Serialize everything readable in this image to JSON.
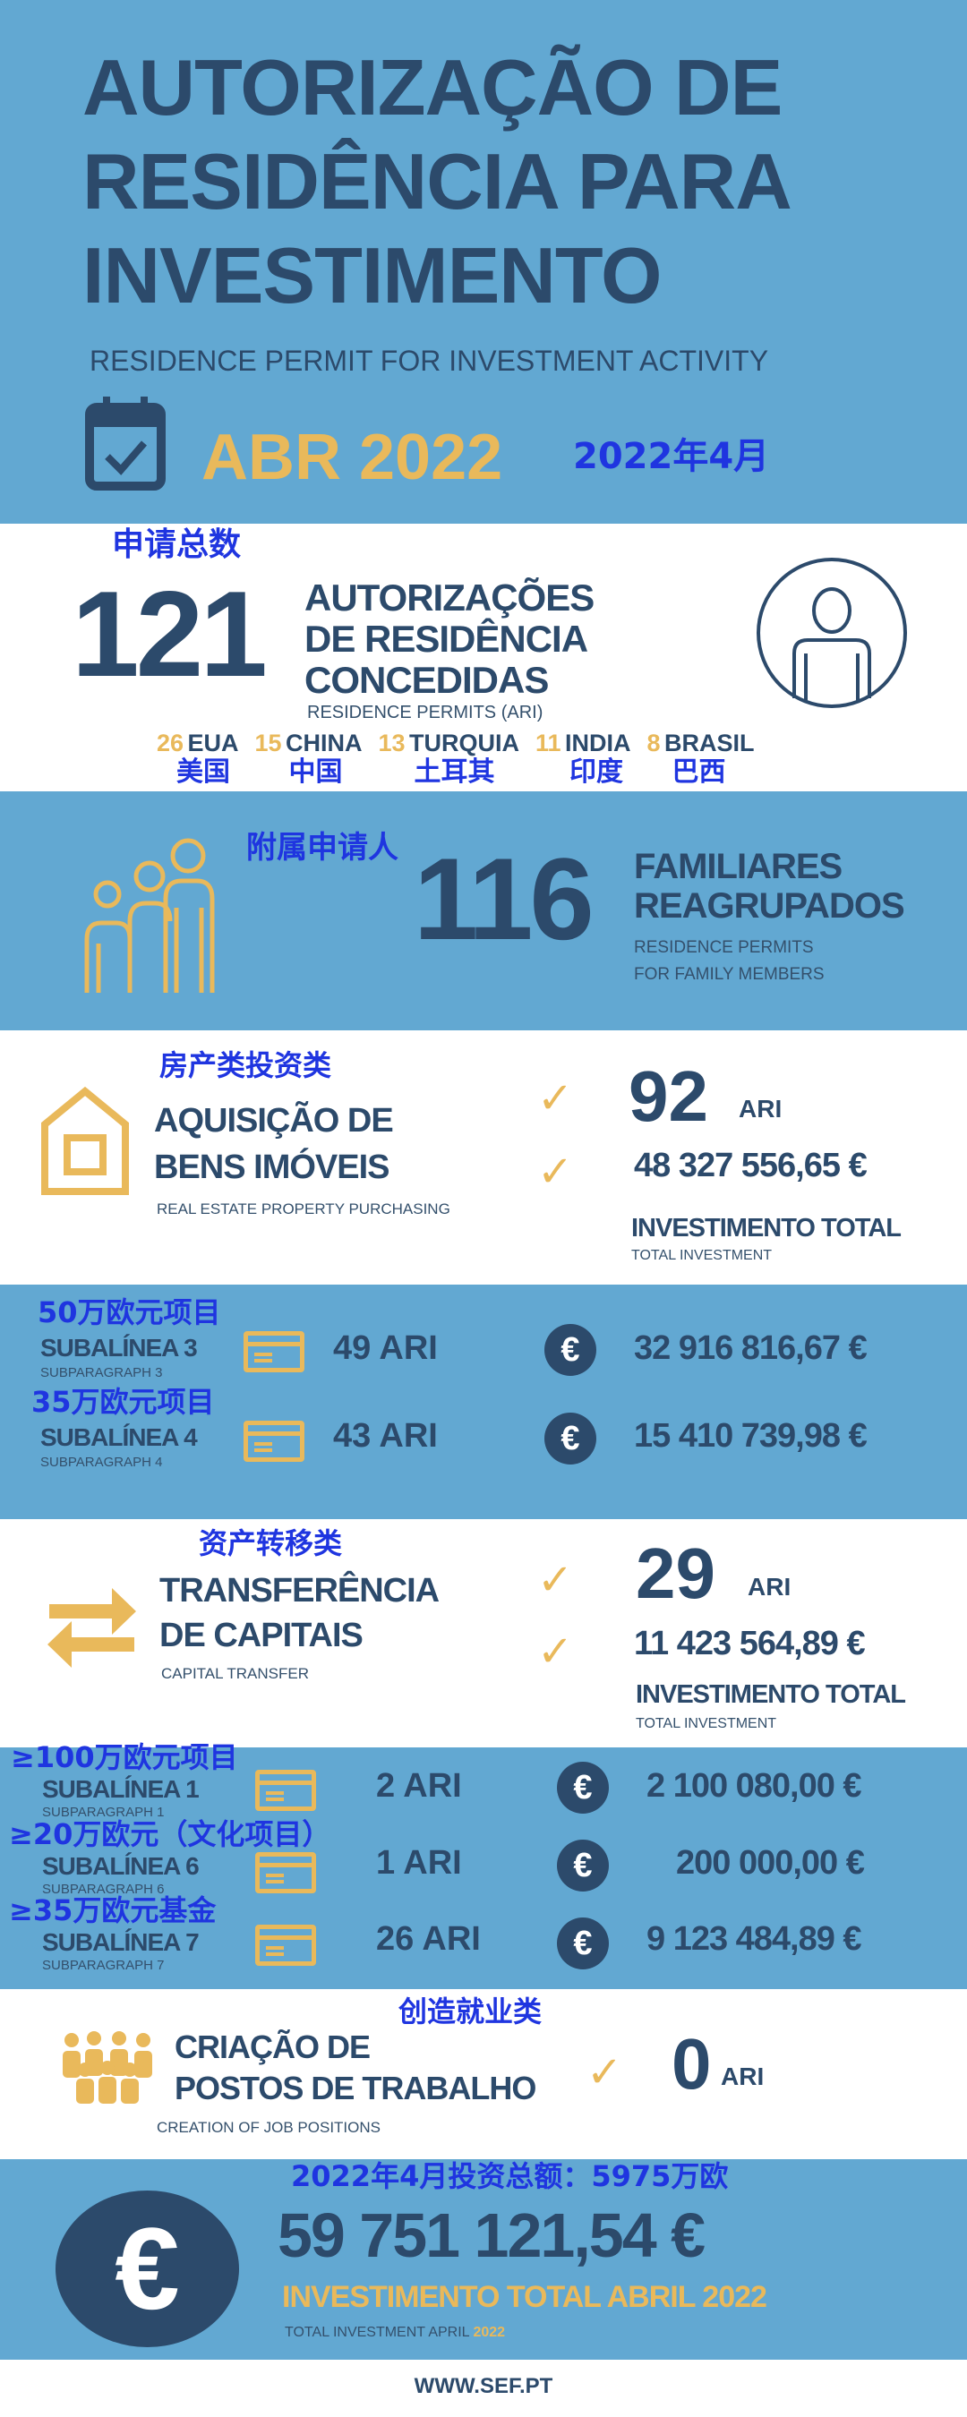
{
  "header": {
    "title_lines": [
      "AUTORIZAÇÃO DE",
      "RESIDÊNCIA PARA",
      "INVESTIMENTO"
    ],
    "subtitle": "RESIDENCE PERMIT FOR INVESTMENT ACTIVITY",
    "month": "ABR 2022",
    "month_cn": "2022年4月",
    "icon": "calendar-check-icon"
  },
  "permits": {
    "cn_label": "申请总数",
    "total": "121",
    "title_lines": [
      "AUTORIZAÇÕES",
      "DE RESIDÊNCIA",
      "CONCEDIDAS"
    ],
    "subtitle": "RESIDENCE PERMITS (ARI)",
    "icon": "person-circle-icon",
    "countries": [
      {
        "count": "26",
        "name": "EUA",
        "cn": "美国"
      },
      {
        "count": "15",
        "name": "CHINA",
        "cn": "中国"
      },
      {
        "count": "13",
        "name": "TURQUIA",
        "cn": "土耳其"
      },
      {
        "count": "11",
        "name": "INDIA",
        "cn": "印度"
      },
      {
        "count": "8",
        "name": "BRASIL",
        "cn": "巴西"
      }
    ]
  },
  "family": {
    "cn_label": "附属申请人",
    "total": "116",
    "title_lines": [
      "FAMILIARES",
      "REAGRUPADOS"
    ],
    "subtitle_lines": [
      "RESIDENCE PERMITS",
      "FOR FAMILY MEMBERS"
    ],
    "icon": "family-icon"
  },
  "real_estate": {
    "cn_label": "房产类投资类",
    "title_lines": [
      "AQUISIÇÃO DE",
      "BENS IMÓVEIS"
    ],
    "subtitle": "REAL ESTATE PROPERTY PURCHASING",
    "count": "92",
    "unit": "ARI",
    "amount": "48 327 556,65 €",
    "total_label": "INVESTIMENTO TOTAL",
    "total_sub": "TOTAL INVESTMENT",
    "icon": "house-icon",
    "rows": [
      {
        "cn": "50万欧元项目",
        "name": "SUBALÍNEA 3",
        "sub": "SUBPARAGRAPH 3",
        "ari": "49 ARI",
        "amount": "32 916 816,67 €"
      },
      {
        "cn": "35万欧元项目",
        "name": "SUBALÍNEA 4",
        "sub": "SUBPARAGRAPH 4",
        "ari": "43 ARI",
        "amount": "15 410 739,98 €"
      }
    ]
  },
  "capital": {
    "cn_label": "资产转移类",
    "title_lines": [
      "TRANSFERÊNCIA",
      "DE CAPITAIS"
    ],
    "subtitle": "CAPITAL TRANSFER",
    "count": "29",
    "unit": "ARI",
    "amount": "11 423 564,89 €",
    "total_label": "INVESTIMENTO TOTAL",
    "total_sub": "TOTAL INVESTMENT",
    "icon": "transfer-arrows-icon",
    "rows": [
      {
        "cn": "≥100万欧元项目",
        "name": "SUBALÍNEA 1",
        "sub": "SUBPARAGRAPH 1",
        "ari": "2 ARI",
        "amount": "2 100 080,00 €"
      },
      {
        "cn": "≥20万欧元（文化项目）",
        "name": "SUBALÍNEA 6",
        "sub": "SUBPARAGRAPH 6",
        "ari": "1 ARI",
        "amount": "200 000,00 €"
      },
      {
        "cn": "≥35万欧元基金",
        "name": "SUBALÍNEA 7",
        "sub": "SUBPARAGRAPH 7",
        "ari": "26 ARI",
        "amount": "9 123 484,89 €"
      }
    ]
  },
  "jobs": {
    "cn_label": "创造就业类",
    "title_lines": [
      "CRIAÇÃO DE",
      "POSTOS DE TRABALHO"
    ],
    "subtitle": "CREATION OF JOB POSITIONS",
    "count": "0",
    "unit": "ARI",
    "icon": "people-group-icon"
  },
  "total": {
    "cn_label": "2022年4月投资总额：5975万欧",
    "amount": "59 751 121,54 €",
    "label": "INVESTIMENTO TOTAL ABRIL 2022",
    "sub": "TOTAL INVESTMENT APRIL",
    "sub_year": "2022"
  },
  "footer": {
    "url": "WWW.SEF.PT"
  },
  "colors": {
    "navy": "#2c4a6b",
    "blue": "#62a8d2",
    "gold": "#e9b95b",
    "cn_text": "#1f35e0"
  }
}
